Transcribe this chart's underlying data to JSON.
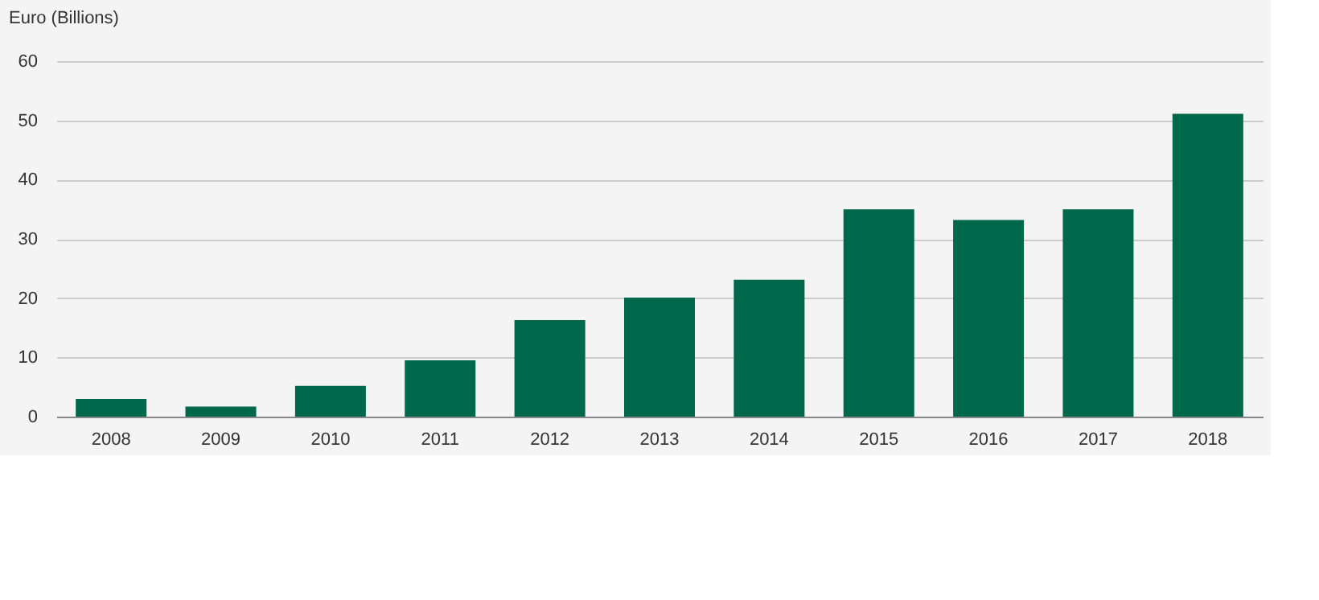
{
  "chart_data": {
    "type": "bar",
    "ylabel": "Euro (Billions)",
    "categories": [
      "2008",
      "2009",
      "2010",
      "2011",
      "2012",
      "2013",
      "2014",
      "2015",
      "2016",
      "2017",
      "2018"
    ],
    "values": [
      3.0,
      1.7,
      5.2,
      9.5,
      16.3,
      20.1,
      23.1,
      35.0,
      33.2,
      35.0,
      51.1
    ],
    "color": "#00684a",
    "ylim": [
      0,
      60
    ],
    "yticks": [
      0,
      10,
      20,
      30,
      40,
      50,
      60
    ],
    "grid": "y"
  }
}
